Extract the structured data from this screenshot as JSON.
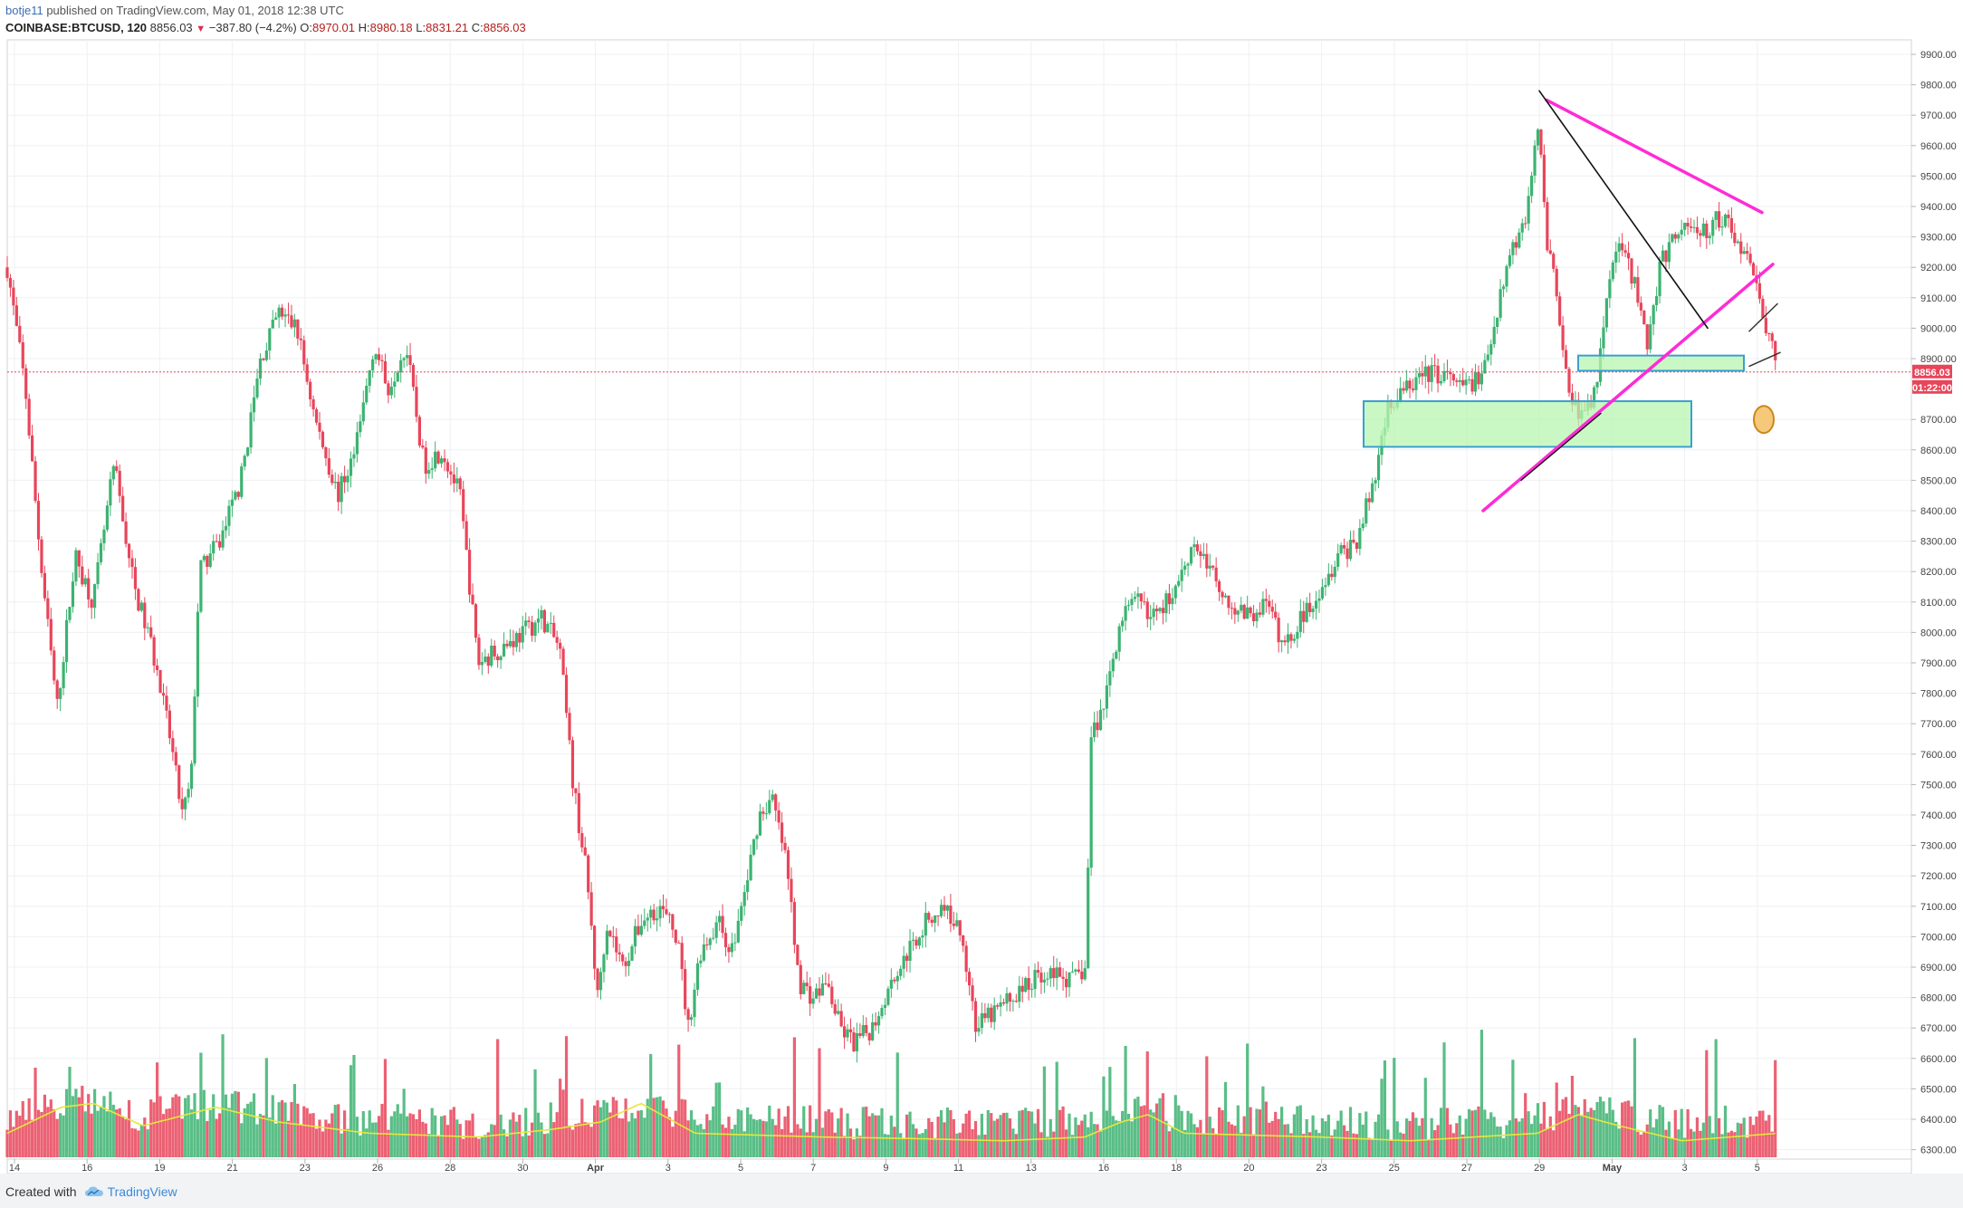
{
  "header": {
    "user": "botje11",
    "published": "published on TradingView.com, May 01, 2018 12:38 UTC",
    "symbol": "COINBASE:BTCUSD, 120",
    "last": "8856.03",
    "change": "−387.80 (−4.2%)",
    "o_label": "O:",
    "o_value": "8970.01",
    "h_label": "H:",
    "h_value": "8980.18",
    "l_label": "L:",
    "l_value": "8831.21",
    "c_label": "C:",
    "c_value": "8856.03"
  },
  "price_tags": {
    "last": "8856.03",
    "countdown": "01:22:00"
  },
  "footer": {
    "created_with": "Created with",
    "brand": "TradingView"
  },
  "colors": {
    "up": "#3cb371",
    "down": "#e8455a",
    "trend_magenta": "#ff2bd6",
    "zone_fill": "#b8f5b0",
    "zone_border": "#3b9fd1",
    "ma_line": "#e5e83a",
    "marker": "#f5c87a"
  },
  "chart_data": {
    "type": "candlestick",
    "interval": "120",
    "y_ticks": [
      6300,
      6400,
      6500,
      6600,
      6700,
      6800,
      6900,
      7000,
      7100,
      7200,
      7300,
      7400,
      7500,
      7600,
      7700,
      7800,
      7900,
      8000,
      8100,
      8200,
      8300,
      8400,
      8500,
      8600,
      8700,
      8900,
      9000,
      9100,
      9200,
      9300,
      9400,
      9500,
      9600,
      9700,
      9800,
      9900
    ],
    "ylim": [
      6240,
      9960
    ],
    "x_ticks": [
      "14",
      "16",
      "19",
      "21",
      "23",
      "26",
      "28",
      "30",
      "Apr",
      "3",
      "5",
      "7",
      "9",
      "11",
      "13",
      "16",
      "18",
      "20",
      "23",
      "25",
      "27",
      "29",
      "May",
      "3",
      "5"
    ],
    "price_anchors": [
      {
        "x": 0,
        "v": 9200
      },
      {
        "x": 20,
        "v": 8800
      },
      {
        "x": 38,
        "v": 8200
      },
      {
        "x": 55,
        "v": 7750
      },
      {
        "x": 75,
        "v": 8250
      },
      {
        "x": 95,
        "v": 8100
      },
      {
        "x": 118,
        "v": 8550
      },
      {
        "x": 140,
        "v": 8150
      },
      {
        "x": 160,
        "v": 7950
      },
      {
        "x": 180,
        "v": 7650
      },
      {
        "x": 193,
        "v": 7400
      },
      {
        "x": 203,
        "v": 7500
      },
      {
        "x": 212,
        "v": 8200
      },
      {
        "x": 235,
        "v": 8300
      },
      {
        "x": 258,
        "v": 8500
      },
      {
        "x": 280,
        "v": 8900
      },
      {
        "x": 300,
        "v": 9050
      },
      {
        "x": 320,
        "v": 9000
      },
      {
        "x": 340,
        "v": 8700
      },
      {
        "x": 365,
        "v": 8450
      },
      {
        "x": 385,
        "v": 8600
      },
      {
        "x": 405,
        "v": 8950
      },
      {
        "x": 420,
        "v": 8800
      },
      {
        "x": 440,
        "v": 8950
      },
      {
        "x": 460,
        "v": 8550
      },
      {
        "x": 480,
        "v": 8600
      },
      {
        "x": 500,
        "v": 8450
      },
      {
        "x": 520,
        "v": 7900
      },
      {
        "x": 545,
        "v": 7950
      },
      {
        "x": 570,
        "v": 8000
      },
      {
        "x": 590,
        "v": 8050
      },
      {
        "x": 610,
        "v": 7950
      },
      {
        "x": 625,
        "v": 7500
      },
      {
        "x": 640,
        "v": 7200
      },
      {
        "x": 652,
        "v": 6800
      },
      {
        "x": 662,
        "v": 7050
      },
      {
        "x": 680,
        "v": 6900
      },
      {
        "x": 700,
        "v": 7050
      },
      {
        "x": 720,
        "v": 7100
      },
      {
        "x": 740,
        "v": 7000
      },
      {
        "x": 752,
        "v": 6700
      },
      {
        "x": 765,
        "v": 6950
      },
      {
        "x": 785,
        "v": 7050
      },
      {
        "x": 800,
        "v": 6950
      },
      {
        "x": 815,
        "v": 7150
      },
      {
        "x": 830,
        "v": 7400
      },
      {
        "x": 845,
        "v": 7450
      },
      {
        "x": 860,
        "v": 7250
      },
      {
        "x": 875,
        "v": 6850
      },
      {
        "x": 890,
        "v": 6800
      },
      {
        "x": 905,
        "v": 6850
      },
      {
        "x": 920,
        "v": 6700
      },
      {
        "x": 935,
        "v": 6650
      },
      {
        "x": 955,
        "v": 6700
      },
      {
        "x": 975,
        "v": 6850
      },
      {
        "x": 995,
        "v": 6950
      },
      {
        "x": 1015,
        "v": 7050
      },
      {
        "x": 1035,
        "v": 7100
      },
      {
        "x": 1055,
        "v": 7000
      },
      {
        "x": 1070,
        "v": 6700
      },
      {
        "x": 1090,
        "v": 6750
      },
      {
        "x": 1110,
        "v": 6800
      },
      {
        "x": 1130,
        "v": 6850
      },
      {
        "x": 1150,
        "v": 6900
      },
      {
        "x": 1175,
        "v": 6850
      },
      {
        "x": 1192,
        "v": 6900
      },
      {
        "x": 1196,
        "v": 7650
      },
      {
        "x": 1210,
        "v": 7750
      },
      {
        "x": 1230,
        "v": 8050
      },
      {
        "x": 1250,
        "v": 8100
      },
      {
        "x": 1270,
        "v": 8050
      },
      {
        "x": 1290,
        "v": 8150
      },
      {
        "x": 1310,
        "v": 8300
      },
      {
        "x": 1330,
        "v": 8200
      },
      {
        "x": 1350,
        "v": 8100
      },
      {
        "x": 1370,
        "v": 8050
      },
      {
        "x": 1390,
        "v": 8100
      },
      {
        "x": 1410,
        "v": 7950
      },
      {
        "x": 1430,
        "v": 8050
      },
      {
        "x": 1450,
        "v": 8150
      },
      {
        "x": 1470,
        "v": 8250
      },
      {
        "x": 1490,
        "v": 8300
      },
      {
        "x": 1510,
        "v": 8500
      },
      {
        "x": 1525,
        "v": 8750
      },
      {
        "x": 1545,
        "v": 8800
      },
      {
        "x": 1565,
        "v": 8850
      },
      {
        "x": 1585,
        "v": 8850
      },
      {
        "x": 1605,
        "v": 8800
      },
      {
        "x": 1630,
        "v": 8850
      },
      {
        "x": 1655,
        "v": 9200
      },
      {
        "x": 1680,
        "v": 9400
      },
      {
        "x": 1692,
        "v": 9700
      },
      {
        "x": 1700,
        "v": 9300
      },
      {
        "x": 1712,
        "v": 9100
      },
      {
        "x": 1725,
        "v": 8800
      },
      {
        "x": 1740,
        "v": 8700
      },
      {
        "x": 1755,
        "v": 8800
      },
      {
        "x": 1770,
        "v": 9200
      },
      {
        "x": 1785,
        "v": 9300
      },
      {
        "x": 1800,
        "v": 9100
      },
      {
        "x": 1812,
        "v": 8950
      },
      {
        "x": 1825,
        "v": 9200
      },
      {
        "x": 1840,
        "v": 9300
      },
      {
        "x": 1855,
        "v": 9350
      },
      {
        "x": 1870,
        "v": 9300
      },
      {
        "x": 1885,
        "v": 9350
      },
      {
        "x": 1900,
        "v": 9350
      },
      {
        "x": 1915,
        "v": 9250
      },
      {
        "x": 1930,
        "v": 9200
      },
      {
        "x": 1938,
        "v": 9000
      },
      {
        "x": 1948,
        "v": 9020
      },
      {
        "x": 1955,
        "v": 8856
      }
    ],
    "ma_anchors": [
      {
        "x": 0,
        "v": 0.2
      },
      {
        "x": 60,
        "v": 0.55
      },
      {
        "x": 95,
        "v": 0.6
      },
      {
        "x": 150,
        "v": 0.3
      },
      {
        "x": 230,
        "v": 0.55
      },
      {
        "x": 300,
        "v": 0.35
      },
      {
        "x": 400,
        "v": 0.2
      },
      {
        "x": 520,
        "v": 0.15
      },
      {
        "x": 600,
        "v": 0.25
      },
      {
        "x": 655,
        "v": 0.35
      },
      {
        "x": 700,
        "v": 0.6
      },
      {
        "x": 760,
        "v": 0.2
      },
      {
        "x": 900,
        "v": 0.15
      },
      {
        "x": 1000,
        "v": 0.13
      },
      {
        "x": 1100,
        "v": 0.1
      },
      {
        "x": 1190,
        "v": 0.15
      },
      {
        "x": 1230,
        "v": 0.35
      },
      {
        "x": 1260,
        "v": 0.45
      },
      {
        "x": 1300,
        "v": 0.2
      },
      {
        "x": 1450,
        "v": 0.15
      },
      {
        "x": 1550,
        "v": 0.1
      },
      {
        "x": 1690,
        "v": 0.2
      },
      {
        "x": 1735,
        "v": 0.45
      },
      {
        "x": 1780,
        "v": 0.3
      },
      {
        "x": 1850,
        "v": 0.1
      },
      {
        "x": 1955,
        "v": 0.2
      }
    ],
    "drawings": {
      "descending_resistance": {
        "from": {
          "x": 1700,
          "v": 9750
        },
        "to": {
          "x": 1938,
          "v": 9380
        }
      },
      "ascending_support": {
        "from": {
          "x": 1630,
          "v": 8400
        },
        "to": {
          "x": 1950,
          "v": 9210
        }
      },
      "steep_down_line": {
        "from": {
          "x": 1692,
          "v": 9780
        },
        "to": {
          "x": 1878,
          "v": 9000
        }
      },
      "lower_support_segment": {
        "from": {
          "x": 1672,
          "v": 8500
        },
        "to": {
          "x": 1760,
          "v": 8720
        }
      },
      "zone_small": {
        "x_from": 1735,
        "x_to": 1918,
        "v_from": 8860,
        "v_to": 8910
      },
      "zone_large": {
        "x_from": 1498,
        "x_to": 1860,
        "v_from": 8610,
        "v_to": 8760
      },
      "tick_upper": {
        "from": {
          "x": 1924,
          "v": 8990
        },
        "to": {
          "x": 1955,
          "v": 9080
        }
      },
      "tick_lower": {
        "from": {
          "x": 1924,
          "v": 8875
        },
        "to": {
          "x": 1958,
          "v": 8920
        }
      },
      "marker_circle": {
        "x": 1940,
        "v": 8700
      }
    }
  }
}
